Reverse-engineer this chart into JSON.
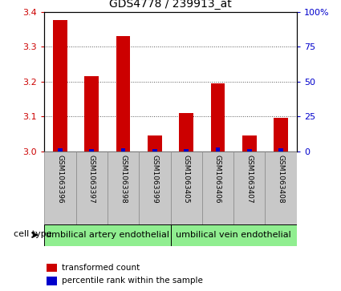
{
  "title": "GDS4778 / 239913_at",
  "samples": [
    "GSM1063396",
    "GSM1063397",
    "GSM1063398",
    "GSM1063399",
    "GSM1063405",
    "GSM1063406",
    "GSM1063407",
    "GSM1063408"
  ],
  "transformed_counts": [
    3.375,
    3.215,
    3.33,
    3.045,
    3.11,
    3.195,
    3.045,
    3.095
  ],
  "percentile_ranks": [
    2.0,
    1.5,
    2.0,
    1.5,
    1.5,
    2.5,
    1.5,
    2.0
  ],
  "ylim_left": [
    3.0,
    3.4
  ],
  "ylim_right": [
    0,
    100
  ],
  "yticks_left": [
    3.0,
    3.1,
    3.2,
    3.3,
    3.4
  ],
  "yticks_right": [
    0,
    25,
    50,
    75,
    100
  ],
  "bar_color_red": "#cc0000",
  "bar_color_blue": "#0000cc",
  "bar_width": 0.45,
  "blue_bar_width": 0.15,
  "cell_group_labels": [
    "umbilical artery endothelial",
    "umbilical vein endothelial"
  ],
  "cell_group_color": "#90ee90",
  "cell_type_label": "cell type",
  "legend_red": "transformed count",
  "legend_blue": "percentile rank within the sample",
  "background_color": "#ffffff",
  "tick_color_left": "#cc0000",
  "tick_color_right": "#0000cc",
  "sample_box_color": "#c8c8c8",
  "sample_box_edge": "#888888",
  "title_fontsize": 10,
  "tick_fontsize": 8,
  "sample_fontsize": 6.5,
  "cell_fontsize": 8,
  "legend_fontsize": 7.5
}
